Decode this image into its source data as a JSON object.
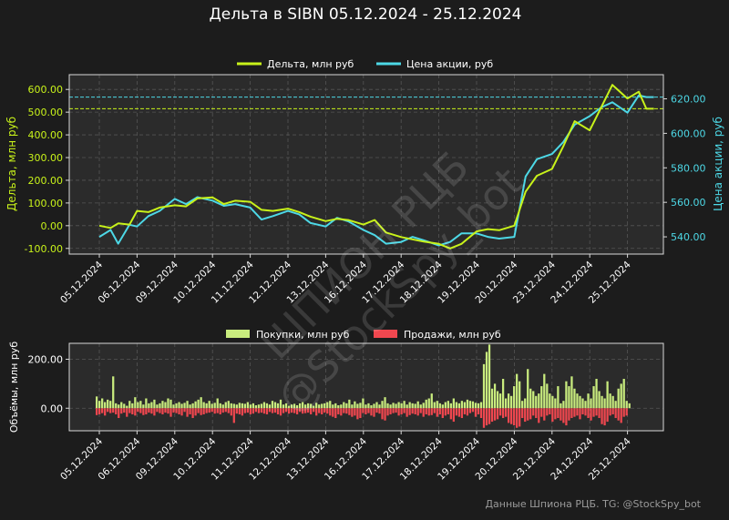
{
  "title": "Дельта в SIBN 05.12.2024 - 25.12.2024",
  "footer": "Данные Шпиона РЦБ. TG: @StockSpy_bot",
  "watermark": {
    "line1": "ШПИОН РЦБ",
    "line2": "@StockSpy_bot"
  },
  "colors": {
    "background": "#1c1c1c",
    "panel": "#2b2b2b",
    "frame": "#d9d9d9",
    "grid": "#555555",
    "delta": "#c8f21a",
    "price": "#4dd8e6",
    "buys": "#c9ec7e",
    "sells": "#f0474f",
    "text": "#ffffff"
  },
  "dates": [
    "05.12.2024",
    "06.12.2024",
    "09.12.2024",
    "10.12.2024",
    "11.12.2024",
    "12.12.2024",
    "13.12.2024",
    "16.12.2024",
    "17.12.2024",
    "18.12.2024",
    "19.12.2024",
    "20.12.2024",
    "23.12.2024",
    "24.12.2024",
    "25.12.2024"
  ],
  "chart_data": [
    {
      "type": "line",
      "title": "Дельта в SIBN 05.12.2024 - 25.12.2024",
      "xlabel": "",
      "ylabel_left": "Дельта, млн руб",
      "ylabel_right": "Цена акции, руб",
      "left_ylim": [
        -125,
        665
      ],
      "left_ticks": [
        "-100.00",
        "0.00",
        "100.00",
        "200.00",
        "300.00",
        "400.00",
        "500.00",
        "600.00"
      ],
      "left_tick_values": [
        -100,
        0,
        100,
        200,
        300,
        400,
        500,
        600
      ],
      "right_ylim": [
        530,
        634
      ],
      "right_ticks": [
        "540.00",
        "560.00",
        "580.00",
        "600.00",
        "620.00"
      ],
      "right_tick_values": [
        540,
        560,
        580,
        600,
        620
      ],
      "hlines": {
        "delta_final": 515,
        "price_final": 621
      },
      "grid": true,
      "legend": "top-center",
      "series": [
        {
          "name": "Дельта, млн руб",
          "axis": "left",
          "points": [
            [
              0,
              0
            ],
            [
              0.3,
              -10
            ],
            [
              0.5,
              10
            ],
            [
              0.8,
              5
            ],
            [
              1.0,
              65
            ],
            [
              1.3,
              60
            ],
            [
              1.6,
              80
            ],
            [
              2.0,
              90
            ],
            [
              2.3,
              85
            ],
            [
              2.6,
              120
            ],
            [
              3.0,
              125
            ],
            [
              3.3,
              95
            ],
            [
              3.6,
              110
            ],
            [
              4.0,
              105
            ],
            [
              4.3,
              70
            ],
            [
              4.6,
              65
            ],
            [
              5.0,
              75
            ],
            [
              5.3,
              60
            ],
            [
              5.6,
              40
            ],
            [
              6.0,
              20
            ],
            [
              6.3,
              30
            ],
            [
              6.6,
              25
            ],
            [
              7.0,
              5
            ],
            [
              7.3,
              25
            ],
            [
              7.6,
              -30
            ],
            [
              8.0,
              -50
            ],
            [
              8.3,
              -60
            ],
            [
              8.6,
              -70
            ],
            [
              9.0,
              -80
            ],
            [
              9.3,
              -100
            ],
            [
              9.6,
              -80
            ],
            [
              10.0,
              -25
            ],
            [
              10.3,
              -15
            ],
            [
              10.6,
              -20
            ],
            [
              11.0,
              0
            ],
            [
              11.3,
              150
            ],
            [
              11.6,
              220
            ],
            [
              12.0,
              250
            ],
            [
              12.3,
              350
            ],
            [
              12.6,
              460
            ],
            [
              13.0,
              420
            ],
            [
              13.3,
              520
            ],
            [
              13.6,
              620
            ],
            [
              14.0,
              560
            ],
            [
              14.3,
              590
            ],
            [
              14.5,
              515
            ],
            [
              14.7,
              515
            ]
          ]
        },
        {
          "name": "Цена акции, руб",
          "axis": "right",
          "points": [
            [
              0,
              540
            ],
            [
              0.3,
              544
            ],
            [
              0.5,
              536
            ],
            [
              0.8,
              547
            ],
            [
              1.0,
              546
            ],
            [
              1.3,
              552
            ],
            [
              1.6,
              555
            ],
            [
              2.0,
              562
            ],
            [
              2.3,
              559
            ],
            [
              2.6,
              563
            ],
            [
              3.0,
              561
            ],
            [
              3.3,
              558
            ],
            [
              3.6,
              559
            ],
            [
              4.0,
              557
            ],
            [
              4.3,
              550
            ],
            [
              4.6,
              552
            ],
            [
              5.0,
              555
            ],
            [
              5.3,
              553
            ],
            [
              5.6,
              548
            ],
            [
              6.0,
              546
            ],
            [
              6.3,
              551
            ],
            [
              6.6,
              549
            ],
            [
              7.0,
              544
            ],
            [
              7.3,
              541
            ],
            [
              7.6,
              536
            ],
            [
              8.0,
              537
            ],
            [
              8.3,
              540
            ],
            [
              8.6,
              538
            ],
            [
              9.0,
              535
            ],
            [
              9.3,
              537
            ],
            [
              9.6,
              542
            ],
            [
              10.0,
              542
            ],
            [
              10.3,
              540
            ],
            [
              10.6,
              539
            ],
            [
              11.0,
              540
            ],
            [
              11.3,
              575
            ],
            [
              11.6,
              585
            ],
            [
              12.0,
              588
            ],
            [
              12.3,
              595
            ],
            [
              12.6,
              605
            ],
            [
              13.0,
              610
            ],
            [
              13.3,
              615
            ],
            [
              13.6,
              618
            ],
            [
              14.0,
              612
            ],
            [
              14.3,
              622
            ],
            [
              14.5,
              621
            ],
            [
              14.7,
              621
            ]
          ]
        }
      ]
    },
    {
      "type": "bar",
      "title": "",
      "xlabel": "",
      "ylabel": "Объёмы, млн руб",
      "ylim": [
        -92,
        265
      ],
      "yticks": [
        "0.00",
        "200.00"
      ],
      "ytick_values": [
        0,
        200
      ],
      "grid": true,
      "legend": "top-center",
      "series": [
        {
          "name": "Покупки, млн руб",
          "values": [
            48,
            30,
            40,
            25,
            35,
            30,
            130,
            20,
            15,
            25,
            18,
            10,
            30,
            20,
            45,
            25,
            30,
            15,
            40,
            20,
            25,
            35,
            15,
            20,
            30,
            25,
            40,
            35,
            15,
            20,
            25,
            18,
            22,
            30,
            15,
            20,
            28,
            35,
            45,
            25,
            20,
            30,
            18,
            22,
            40,
            20,
            15,
            25,
            30,
            20,
            18,
            15,
            22,
            20,
            18,
            25,
            15,
            20,
            12,
            15,
            18,
            25,
            20,
            15,
            30,
            25,
            20,
            35,
            15,
            20,
            10,
            15,
            18,
            12,
            20,
            25,
            15,
            20,
            18,
            10,
            22,
            15,
            18,
            20,
            25,
            30,
            15,
            20,
            12,
            15,
            25,
            20,
            35,
            15,
            28,
            18,
            22,
            40,
            15,
            20,
            12,
            18,
            25,
            15,
            30,
            45,
            20,
            15,
            22,
            18,
            25,
            20,
            30,
            15,
            25,
            20,
            18,
            28,
            15,
            22,
            35,
            40,
            60,
            25,
            30,
            20,
            15,
            25,
            30,
            20,
            40,
            25,
            20,
            30,
            25,
            35,
            30,
            28,
            22,
            20,
            25,
            180,
            230,
            260,
            80,
            100,
            70,
            60,
            120,
            40,
            60,
            50,
            90,
            140,
            110,
            30,
            40,
            160,
            80,
            70,
            50,
            60,
            90,
            140,
            100,
            60,
            50,
            40,
            90,
            20,
            30,
            110,
            90,
            130,
            80,
            60,
            50,
            40,
            30,
            60,
            40,
            90,
            120,
            70,
            50,
            40,
            110,
            60,
            50,
            30,
            80,
            100,
            120,
            30,
            20
          ]
        },
        {
          "name": "Продажи, млн руб",
          "values": [
            28,
            25,
            20,
            30,
            15,
            20,
            18,
            25,
            40,
            22,
            18,
            35,
            20,
            25,
            30,
            15,
            20,
            28,
            25,
            18,
            22,
            30,
            15,
            20,
            25,
            18,
            22,
            35,
            18,
            20,
            25,
            30,
            15,
            35,
            25,
            40,
            30,
            20,
            28,
            25,
            20,
            18,
            15,
            22,
            20,
            25,
            18,
            15,
            20,
            30,
            60,
            22,
            25,
            30,
            20,
            18,
            25,
            22,
            15,
            20,
            18,
            22,
            25,
            15,
            20,
            18,
            25,
            30,
            20,
            15,
            22,
            18,
            20,
            25,
            15,
            22,
            20,
            18,
            25,
            15,
            30,
            20,
            25,
            18,
            22,
            30,
            35,
            40,
            25,
            30,
            20,
            22,
            28,
            35,
            30,
            45,
            40,
            20,
            25,
            20,
            30,
            35,
            18,
            22,
            45,
            50,
            30,
            25,
            20,
            18,
            30,
            25,
            20,
            35,
            28,
            22,
            25,
            30,
            20,
            35,
            25,
            30,
            28,
            20,
            35,
            25,
            40,
            30,
            25,
            45,
            55,
            30,
            35,
            40,
            25,
            30,
            20,
            15,
            35,
            25,
            40,
            80,
            70,
            65,
            55,
            50,
            45,
            30,
            40,
            35,
            60,
            65,
            70,
            80,
            75,
            40,
            55,
            50,
            45,
            30,
            40,
            60,
            35,
            50,
            30,
            25,
            55,
            45,
            40,
            50,
            60,
            70,
            50,
            40,
            35,
            30,
            45,
            25,
            30,
            40,
            50,
            35,
            30,
            40,
            65,
            70,
            55,
            30,
            25,
            40,
            50,
            60,
            35,
            30
          ]
        }
      ]
    }
  ]
}
